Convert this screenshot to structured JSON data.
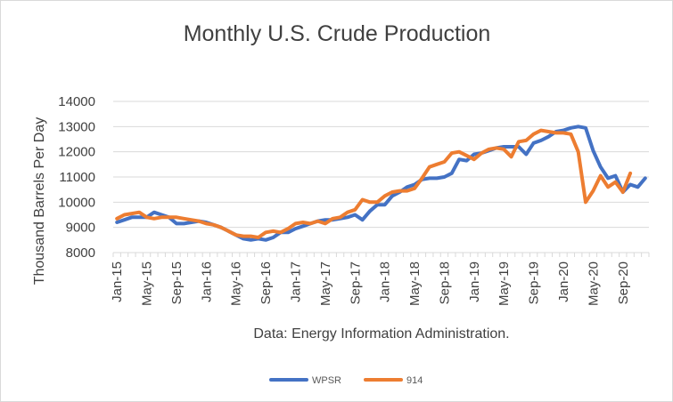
{
  "chart_data": {
    "type": "line",
    "title": "Monthly U.S. Crude Production",
    "ylabel": "Thousand Barrels Per Day",
    "xlabel": "Data: Energy Information Administration.",
    "ylim": [
      8000,
      14000
    ],
    "yticks": [
      8000,
      9000,
      10000,
      11000,
      12000,
      13000,
      14000
    ],
    "xtick_labels": [
      "Jan-15",
      "May-15",
      "Sep-15",
      "Jan-16",
      "May-16",
      "Sep-16",
      "Jan-17",
      "May-17",
      "Sep-17",
      "Jan-18",
      "May-18",
      "Sep-18",
      "Jan-19",
      "May-19",
      "Sep-19",
      "Jan-20",
      "May-20",
      "Sep-20"
    ],
    "x_start": "Jan-15",
    "legend_position": "bottom",
    "grid": "horizontal",
    "series": [
      {
        "name": "WPSR",
        "color": "#4472C4",
        "values": [
          9200,
          9300,
          9400,
          9400,
          9400,
          9600,
          9500,
          9400,
          9150,
          9150,
          9200,
          9250,
          9200,
          9100,
          9000,
          8850,
          8700,
          8550,
          8500,
          8550,
          8500,
          8600,
          8800,
          8800,
          8950,
          9050,
          9150,
          9250,
          9300,
          9300,
          9350,
          9400,
          9500,
          9300,
          9650,
          9900,
          9900,
          10250,
          10400,
          10600,
          10700,
          10900,
          10950,
          10950,
          11000,
          11150,
          11700,
          11650,
          11900,
          11950,
          12050,
          12150,
          12200,
          12200,
          12200,
          11900,
          12350,
          12450,
          12600,
          12800,
          12850,
          12950,
          13000,
          12950,
          12050,
          11400,
          10950,
          11050,
          10400,
          10700,
          10600,
          10950
        ]
      },
      {
        "name": "914",
        "color": "#ED7D31",
        "values": [
          9350,
          9500,
          9550,
          9600,
          9400,
          9350,
          9400,
          9400,
          9400,
          9350,
          9300,
          9250,
          9150,
          9100,
          9000,
          8850,
          8700,
          8650,
          8650,
          8600,
          8800,
          8850,
          8800,
          8950,
          9150,
          9200,
          9150,
          9250,
          9150,
          9350,
          9400,
          9600,
          9700,
          10100,
          10000,
          10000,
          10250,
          10400,
          10450,
          10450,
          10550,
          10950,
          11400,
          11500,
          11600,
          11950,
          12000,
          11850,
          11700,
          11950,
          12100,
          12150,
          12100,
          11800,
          12400,
          12450,
          12700,
          12850,
          12800,
          12750,
          12750,
          12700,
          12000,
          10000,
          10450,
          11050,
          10600,
          10800,
          10400,
          11150
        ]
      }
    ]
  }
}
